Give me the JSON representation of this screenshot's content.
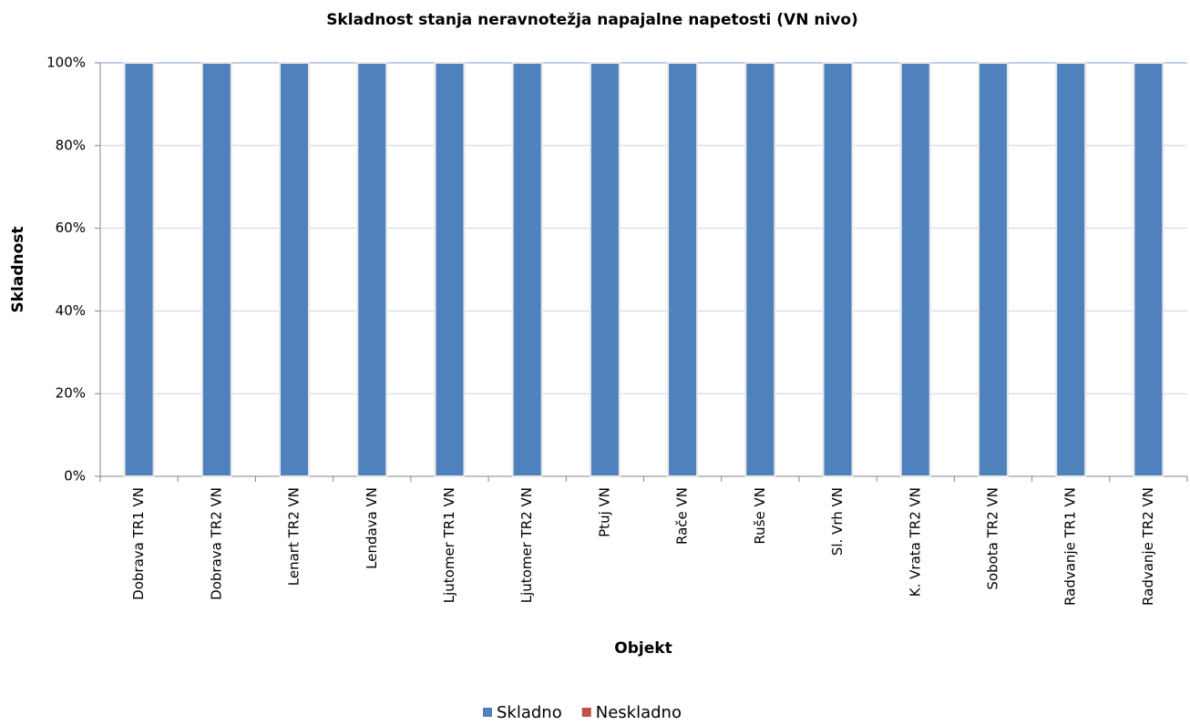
{
  "chart_data": {
    "type": "stacked_bar",
    "title": "Skladnost stanja neravnotežja napajalne napetosti (VN nivo)",
    "xlabel": "Objekt",
    "ylabel": "Skladnost",
    "categories": [
      "Dobrava TR1 VN",
      "Dobrava TR2 VN",
      "Lenart TR2 VN",
      "Lendava VN",
      "Ljutomer TR1 VN",
      "Ljutomer TR2 VN",
      "Ptuj VN",
      "Rače VN",
      "Ruše VN",
      "Sl. Vrh VN",
      "K. Vrata TR2 VN",
      "Sobota TR2 VN",
      "Radvanje TR1 VN",
      "Radvanje TR2 VN"
    ],
    "series": [
      {
        "name": "Skladno",
        "color": "#4f81bd",
        "values": [
          100,
          100,
          100,
          100,
          100,
          100,
          100,
          100,
          100,
          100,
          100,
          100,
          100,
          100
        ]
      },
      {
        "name": "Neskladno",
        "color": "#c0504d",
        "values": [
          0,
          0,
          0,
          0,
          0,
          0,
          0,
          0,
          0,
          0,
          0,
          0,
          0,
          0
        ]
      }
    ],
    "ylim": [
      0,
      100
    ],
    "yticks": [
      {
        "value": 0,
        "label": "0%"
      },
      {
        "value": 20,
        "label": "20%"
      },
      {
        "value": 40,
        "label": "40%"
      },
      {
        "value": 60,
        "label": "60%"
      },
      {
        "value": 80,
        "label": "80%"
      },
      {
        "value": 100,
        "label": "100%"
      }
    ],
    "grid": true,
    "legend": "bottom"
  }
}
